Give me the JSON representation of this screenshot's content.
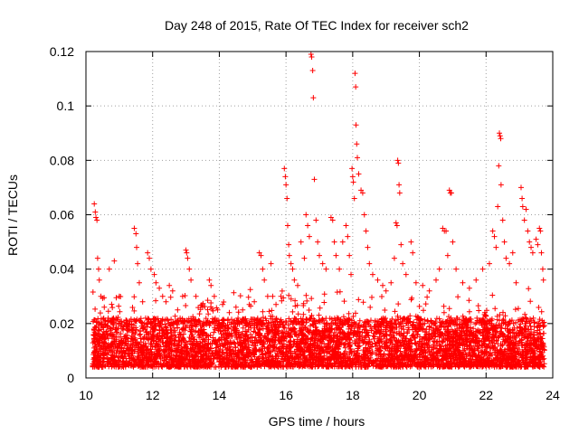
{
  "chart_data": {
    "type": "scatter",
    "title": "Day 248 of 2015, Rate Of TEC Index for receiver sch2",
    "xlabel": "GPS time / hours",
    "ylabel": "ROTI / TECUs",
    "xlim": [
      10,
      24
    ],
    "ylim": [
      0,
      0.12
    ],
    "xticks": [
      10,
      12,
      14,
      16,
      18,
      20,
      22,
      24
    ],
    "yticks": [
      0,
      0.02,
      0.04,
      0.06,
      0.08,
      0.1,
      0.12
    ],
    "xtick_labels": [
      "10",
      "12",
      "14",
      "16",
      "18",
      "20",
      "22",
      "24"
    ],
    "ytick_labels": [
      "0",
      "0.02",
      "0.04",
      "0.06",
      "0.08",
      "0.1",
      "0.12"
    ],
    "grid": true,
    "marker": "+",
    "series": [
      {
        "name": "sch2",
        "color": "#ff0000",
        "baseline": {
          "x_start": 10.2,
          "x_end": 23.75,
          "typical_min": 0.004,
          "typical_max": 0.022
        },
        "points": [
          {
            "x": 10.25,
            "y": 0.064
          },
          {
            "x": 10.28,
            "y": 0.061
          },
          {
            "x": 10.3,
            "y": 0.059
          },
          {
            "x": 10.33,
            "y": 0.058
          },
          {
            "x": 10.35,
            "y": 0.044
          },
          {
            "x": 10.38,
            "y": 0.04
          },
          {
            "x": 10.4,
            "y": 0.036
          },
          {
            "x": 10.45,
            "y": 0.03
          },
          {
            "x": 10.55,
            "y": 0.026
          },
          {
            "x": 10.7,
            "y": 0.04
          },
          {
            "x": 10.85,
            "y": 0.043
          },
          {
            "x": 11.0,
            "y": 0.03
          },
          {
            "x": 11.45,
            "y": 0.055
          },
          {
            "x": 11.5,
            "y": 0.053
          },
          {
            "x": 11.52,
            "y": 0.048
          },
          {
            "x": 11.55,
            "y": 0.042
          },
          {
            "x": 11.6,
            "y": 0.035
          },
          {
            "x": 11.7,
            "y": 0.028
          },
          {
            "x": 11.85,
            "y": 0.046
          },
          {
            "x": 11.9,
            "y": 0.044
          },
          {
            "x": 11.95,
            "y": 0.04
          },
          {
            "x": 12.05,
            "y": 0.038
          },
          {
            "x": 12.1,
            "y": 0.035
          },
          {
            "x": 12.2,
            "y": 0.033
          },
          {
            "x": 12.3,
            "y": 0.03
          },
          {
            "x": 12.4,
            "y": 0.028
          },
          {
            "x": 12.5,
            "y": 0.034
          },
          {
            "x": 12.6,
            "y": 0.032
          },
          {
            "x": 12.75,
            "y": 0.025
          },
          {
            "x": 12.9,
            "y": 0.03
          },
          {
            "x": 13.0,
            "y": 0.047
          },
          {
            "x": 13.02,
            "y": 0.046
          },
          {
            "x": 13.05,
            "y": 0.044
          },
          {
            "x": 13.1,
            "y": 0.04
          },
          {
            "x": 13.15,
            "y": 0.036
          },
          {
            "x": 13.3,
            "y": 0.03
          },
          {
            "x": 13.5,
            "y": 0.026
          },
          {
            "x": 13.7,
            "y": 0.036
          },
          {
            "x": 13.75,
            "y": 0.034
          },
          {
            "x": 13.85,
            "y": 0.03
          },
          {
            "x": 13.95,
            "y": 0.025
          },
          {
            "x": 14.1,
            "y": 0.027
          },
          {
            "x": 14.3,
            "y": 0.024
          },
          {
            "x": 14.5,
            "y": 0.026
          },
          {
            "x": 14.7,
            "y": 0.025
          },
          {
            "x": 14.9,
            "y": 0.027
          },
          {
            "x": 15.05,
            "y": 0.028
          },
          {
            "x": 15.2,
            "y": 0.046
          },
          {
            "x": 15.25,
            "y": 0.045
          },
          {
            "x": 15.3,
            "y": 0.04
          },
          {
            "x": 15.35,
            "y": 0.036
          },
          {
            "x": 15.45,
            "y": 0.03
          },
          {
            "x": 15.55,
            "y": 0.042
          },
          {
            "x": 15.6,
            "y": 0.03
          },
          {
            "x": 15.7,
            "y": 0.027
          },
          {
            "x": 15.85,
            "y": 0.03
          },
          {
            "x": 15.95,
            "y": 0.077
          },
          {
            "x": 15.98,
            "y": 0.074
          },
          {
            "x": 16.0,
            "y": 0.071
          },
          {
            "x": 16.03,
            "y": 0.066
          },
          {
            "x": 16.05,
            "y": 0.056
          },
          {
            "x": 16.08,
            "y": 0.049
          },
          {
            "x": 16.1,
            "y": 0.045
          },
          {
            "x": 16.15,
            "y": 0.042
          },
          {
            "x": 16.2,
            "y": 0.04
          },
          {
            "x": 16.25,
            "y": 0.036
          },
          {
            "x": 16.35,
            "y": 0.034
          },
          {
            "x": 16.45,
            "y": 0.05
          },
          {
            "x": 16.55,
            "y": 0.044
          },
          {
            "x": 16.6,
            "y": 0.06
          },
          {
            "x": 16.65,
            "y": 0.056
          },
          {
            "x": 16.7,
            "y": 0.052
          },
          {
            "x": 16.75,
            "y": 0.119
          },
          {
            "x": 16.77,
            "y": 0.118
          },
          {
            "x": 16.8,
            "y": 0.113
          },
          {
            "x": 16.82,
            "y": 0.103
          },
          {
            "x": 16.85,
            "y": 0.073
          },
          {
            "x": 16.9,
            "y": 0.058
          },
          {
            "x": 16.95,
            "y": 0.05
          },
          {
            "x": 17.0,
            "y": 0.045
          },
          {
            "x": 17.1,
            "y": 0.042
          },
          {
            "x": 17.2,
            "y": 0.04
          },
          {
            "x": 17.35,
            "y": 0.059
          },
          {
            "x": 17.4,
            "y": 0.058
          },
          {
            "x": 17.45,
            "y": 0.05
          },
          {
            "x": 17.5,
            "y": 0.045
          },
          {
            "x": 17.6,
            "y": 0.04
          },
          {
            "x": 17.7,
            "y": 0.05
          },
          {
            "x": 17.8,
            "y": 0.056
          },
          {
            "x": 17.85,
            "y": 0.052
          },
          {
            "x": 17.9,
            "y": 0.045
          },
          {
            "x": 17.95,
            "y": 0.038
          },
          {
            "x": 17.98,
            "y": 0.077
          },
          {
            "x": 18.0,
            "y": 0.074
          },
          {
            "x": 18.02,
            "y": 0.072
          },
          {
            "x": 18.05,
            "y": 0.066
          },
          {
            "x": 18.07,
            "y": 0.112
          },
          {
            "x": 18.09,
            "y": 0.107
          },
          {
            "x": 18.1,
            "y": 0.093
          },
          {
            "x": 18.12,
            "y": 0.086
          },
          {
            "x": 18.14,
            "y": 0.081
          },
          {
            "x": 18.18,
            "y": 0.075
          },
          {
            "x": 18.25,
            "y": 0.069
          },
          {
            "x": 18.3,
            "y": 0.068
          },
          {
            "x": 18.35,
            "y": 0.06
          },
          {
            "x": 18.4,
            "y": 0.054
          },
          {
            "x": 18.45,
            "y": 0.048
          },
          {
            "x": 18.5,
            "y": 0.042
          },
          {
            "x": 18.6,
            "y": 0.038
          },
          {
            "x": 18.75,
            "y": 0.036
          },
          {
            "x": 18.9,
            "y": 0.034
          },
          {
            "x": 19.0,
            "y": 0.032
          },
          {
            "x": 19.15,
            "y": 0.035
          },
          {
            "x": 19.25,
            "y": 0.044
          },
          {
            "x": 19.3,
            "y": 0.057
          },
          {
            "x": 19.33,
            "y": 0.056
          },
          {
            "x": 19.35,
            "y": 0.08
          },
          {
            "x": 19.37,
            "y": 0.079
          },
          {
            "x": 19.39,
            "y": 0.071
          },
          {
            "x": 19.41,
            "y": 0.068
          },
          {
            "x": 19.45,
            "y": 0.049
          },
          {
            "x": 19.5,
            "y": 0.042
          },
          {
            "x": 19.6,
            "y": 0.038
          },
          {
            "x": 19.75,
            "y": 0.05
          },
          {
            "x": 19.8,
            "y": 0.046
          },
          {
            "x": 19.9,
            "y": 0.035
          },
          {
            "x": 20.1,
            "y": 0.034
          },
          {
            "x": 20.3,
            "y": 0.032
          },
          {
            "x": 20.5,
            "y": 0.036
          },
          {
            "x": 20.6,
            "y": 0.04
          },
          {
            "x": 20.7,
            "y": 0.055
          },
          {
            "x": 20.75,
            "y": 0.054
          },
          {
            "x": 20.8,
            "y": 0.054
          },
          {
            "x": 20.85,
            "y": 0.045
          },
          {
            "x": 20.9,
            "y": 0.069
          },
          {
            "x": 20.93,
            "y": 0.068
          },
          {
            "x": 20.96,
            "y": 0.068
          },
          {
            "x": 21.0,
            "y": 0.05
          },
          {
            "x": 21.1,
            "y": 0.04
          },
          {
            "x": 21.3,
            "y": 0.035
          },
          {
            "x": 21.5,
            "y": 0.033
          },
          {
            "x": 21.7,
            "y": 0.036
          },
          {
            "x": 21.9,
            "y": 0.04
          },
          {
            "x": 22.1,
            "y": 0.042
          },
          {
            "x": 22.2,
            "y": 0.054
          },
          {
            "x": 22.25,
            "y": 0.052
          },
          {
            "x": 22.3,
            "y": 0.048
          },
          {
            "x": 22.35,
            "y": 0.063
          },
          {
            "x": 22.38,
            "y": 0.078
          },
          {
            "x": 22.4,
            "y": 0.09
          },
          {
            "x": 22.42,
            "y": 0.089
          },
          {
            "x": 22.44,
            "y": 0.088
          },
          {
            "x": 22.45,
            "y": 0.071
          },
          {
            "x": 22.5,
            "y": 0.058
          },
          {
            "x": 22.55,
            "y": 0.05
          },
          {
            "x": 22.6,
            "y": 0.044
          },
          {
            "x": 22.7,
            "y": 0.042
          },
          {
            "x": 22.8,
            "y": 0.046
          },
          {
            "x": 22.9,
            "y": 0.035
          },
          {
            "x": 23.05,
            "y": 0.07
          },
          {
            "x": 23.08,
            "y": 0.066
          },
          {
            "x": 23.1,
            "y": 0.063
          },
          {
            "x": 23.15,
            "y": 0.058
          },
          {
            "x": 23.2,
            "y": 0.062
          },
          {
            "x": 23.25,
            "y": 0.054
          },
          {
            "x": 23.3,
            "y": 0.05
          },
          {
            "x": 23.35,
            "y": 0.048
          },
          {
            "x": 23.4,
            "y": 0.046
          },
          {
            "x": 23.5,
            "y": 0.051
          },
          {
            "x": 23.55,
            "y": 0.049
          },
          {
            "x": 23.6,
            "y": 0.055
          },
          {
            "x": 23.63,
            "y": 0.054
          },
          {
            "x": 23.66,
            "y": 0.046
          },
          {
            "x": 23.7,
            "y": 0.04
          },
          {
            "x": 23.72,
            "y": 0.036
          }
        ]
      }
    ]
  }
}
